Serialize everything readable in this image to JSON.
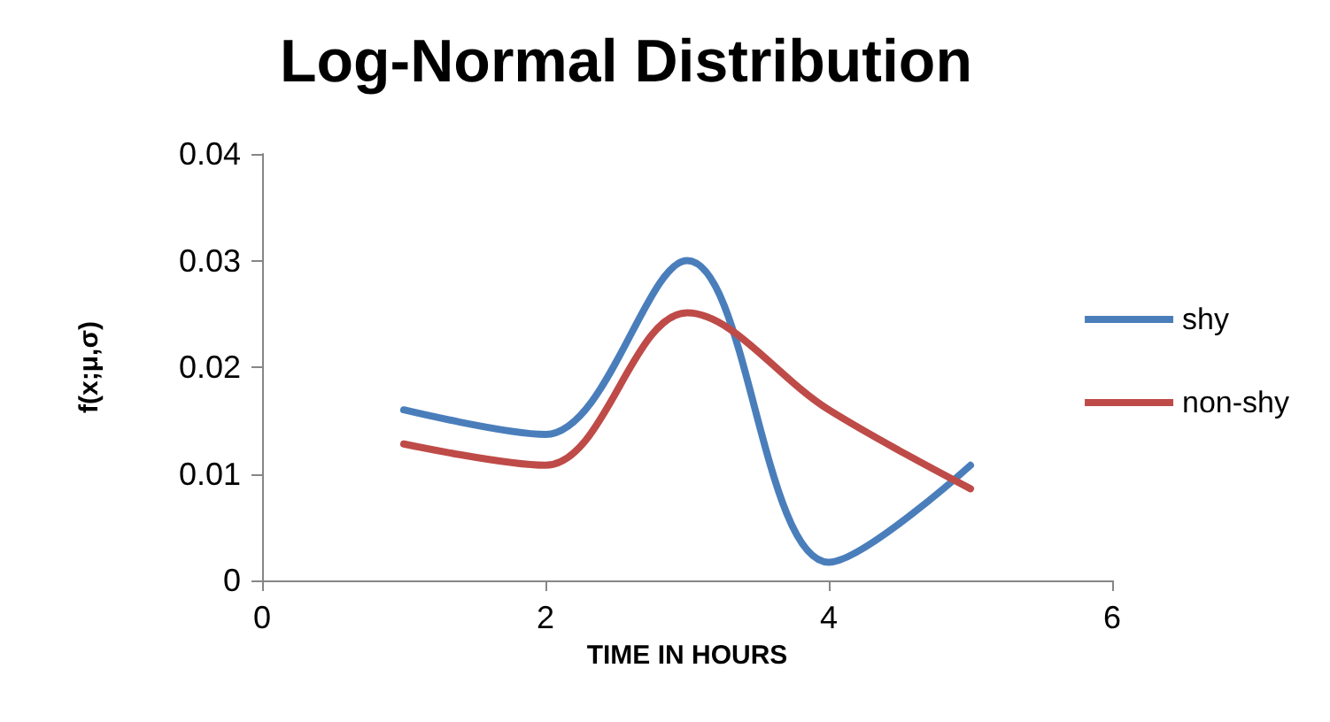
{
  "chart_data": {
    "type": "line",
    "title": "Log-Normal Distribution",
    "xlabel": "TIME IN HOURS",
    "ylabel": "f(x;μ,σ)",
    "x": [
      1,
      2,
      3,
      4,
      5
    ],
    "series": [
      {
        "name": "shy",
        "color": "#4a7ebb",
        "values": [
          0.016,
          0.0137,
          0.03,
          0.0017,
          0.0108
        ]
      },
      {
        "name": "non-shy",
        "color": "#be4b48",
        "values": [
          0.0128,
          0.0108,
          0.0251,
          0.016,
          0.0086
        ]
      }
    ],
    "xlim": [
      0,
      6
    ],
    "xticks": [
      0,
      2,
      4,
      6
    ],
    "ylim": [
      0,
      0.04
    ],
    "yticks": [
      0,
      0.01,
      0.02,
      0.03,
      0.04
    ],
    "grid": false,
    "legend": "right",
    "marker": "none",
    "line_style": "solid"
  }
}
